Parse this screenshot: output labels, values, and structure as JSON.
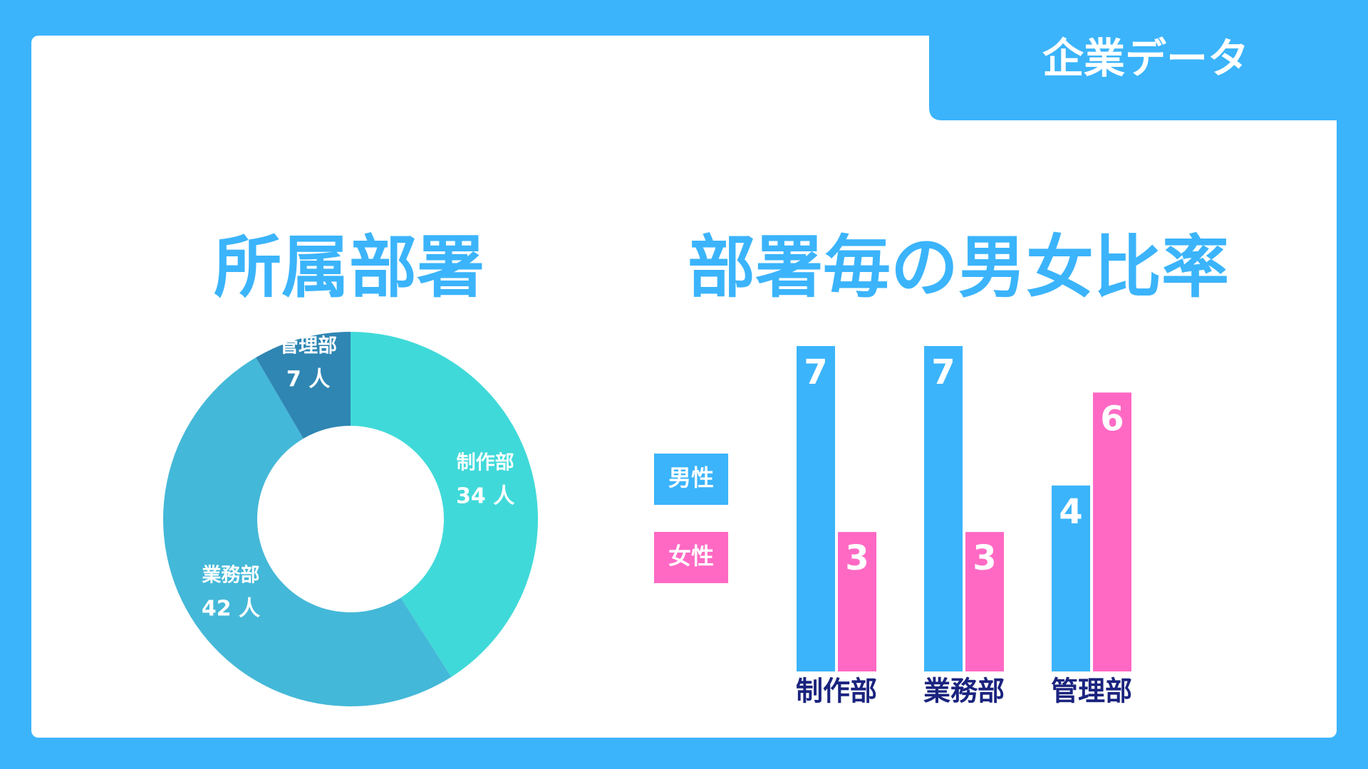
{
  "header": {
    "tab": "企業データ"
  },
  "chart_data": [
    {
      "type": "pie",
      "title": "所属部署",
      "categories": [
        "制作部",
        "業務部",
        "管理部"
      ],
      "values": [
        34,
        42,
        7
      ],
      "value_labels": [
        "34 人",
        "42 人",
        "7 人"
      ],
      "colors": [
        "#40d9d9",
        "#44b8d8",
        "#2f86b3"
      ]
    },
    {
      "type": "bar",
      "title": "部署毎の男女比率",
      "categories": [
        "制作部",
        "業務部",
        "管理部"
      ],
      "series": [
        {
          "name": "男性",
          "color": "#3bb4fb",
          "values": [
            7,
            7,
            4
          ]
        },
        {
          "name": "女性",
          "color": "#ff69c4",
          "values": [
            3,
            3,
            6
          ]
        }
      ],
      "ylim": [
        0,
        7
      ]
    }
  ]
}
